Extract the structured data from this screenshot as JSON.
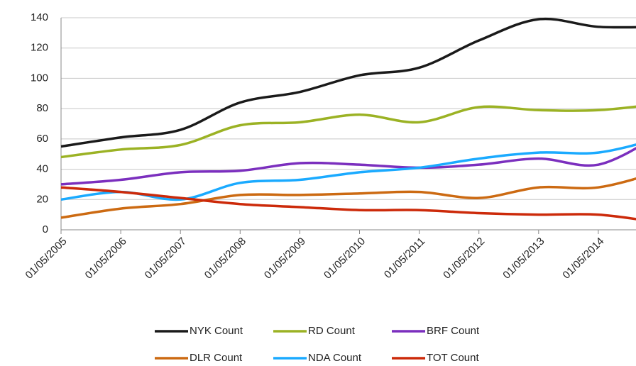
{
  "chart_data": {
    "type": "line",
    "categories": [
      "01/05/2005",
      "01/05/2006",
      "01/05/2007",
      "01/05/2008",
      "01/05/2009",
      "01/05/2010",
      "01/05/2011",
      "01/05/2012",
      "01/05/2013",
      "01/05/2014",
      null
    ],
    "series": [
      {
        "name": "NYK Count",
        "color": "#1a1a1a",
        "values": [
          55,
          61,
          66,
          84,
          91,
          102,
          107,
          125,
          139,
          134,
          134
        ]
      },
      {
        "name": "RD Count",
        "color": "#9bb224",
        "values": [
          48,
          53,
          56,
          69,
          71,
          76,
          71,
          81,
          79,
          79,
          83
        ]
      },
      {
        "name": "BRF Count",
        "color": "#7b2fbe",
        "values": [
          30,
          33,
          38,
          39,
          44,
          43,
          41,
          43,
          47,
          43,
          62
        ]
      },
      {
        "name": "DLR Count",
        "color": "#cc6a12",
        "values": [
          8,
          14,
          17,
          23,
          23,
          24,
          25,
          21,
          28,
          28,
          38
        ]
      },
      {
        "name": "NDA Count",
        "color": "#1aaaff",
        "values": [
          20,
          25,
          20,
          31,
          33,
          38,
          41,
          47,
          51,
          51,
          60
        ]
      },
      {
        "name": "TOT Count",
        "color": "#cc2a0a",
        "values": [
          28,
          25,
          21,
          17,
          15,
          13,
          13,
          11,
          10,
          10,
          5
        ]
      }
    ],
    "ylim": [
      0,
      140
    ],
    "yticks": [
      0,
      20,
      40,
      60,
      80,
      100,
      120,
      140
    ],
    "grid": true
  }
}
